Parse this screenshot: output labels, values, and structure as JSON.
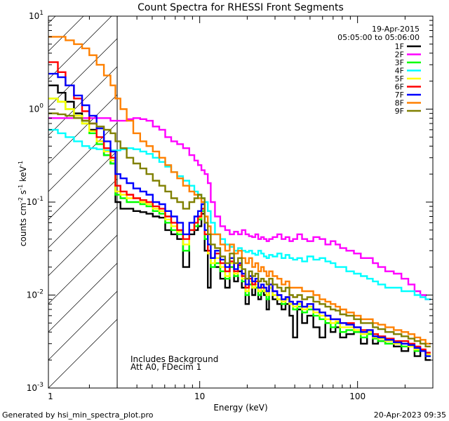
{
  "chart_data": {
    "type": "line",
    "title": "Count Spectra for RHESSI Front Segments",
    "xlabel": "Energy (keV)",
    "ylabel": "counts cm-2 s-1 keV-1",
    "ylabel_parts": {
      "base": "counts cm",
      "exp1": "-2",
      "mid1": " s",
      "exp2": "-1",
      "mid2": " keV",
      "exp3": "-1"
    },
    "xscale": "log",
    "yscale": "log",
    "xlim": [
      1.1,
      300
    ],
    "ylim": [
      0.001,
      10
    ],
    "x_ticks": [
      {
        "value": 1,
        "label": "1"
      },
      {
        "value": 10,
        "label": "10"
      },
      {
        "value": 100,
        "label": "100"
      }
    ],
    "y_ticks": [
      {
        "value": 0.001,
        "base": "10",
        "exp": "-3"
      },
      {
        "value": 0.01,
        "base": "10",
        "exp": "-2"
      },
      {
        "value": 0.1,
        "base": "10",
        "exp": "-1"
      },
      {
        "value": 1,
        "base": "10",
        "exp": "0"
      },
      {
        "value": 10,
        "base": "10",
        "exp": "1"
      }
    ],
    "date": "19-Apr-2015",
    "time_range": "05:05:00 to 05:06:00",
    "annotations": [
      "Includes Background",
      "Att A0, FDecim 1"
    ],
    "attenuator_cutoff_kev": 3,
    "legend_position": "top-right",
    "energies": [
      1.1,
      1.2,
      1.33,
      1.5,
      1.7,
      1.9,
      2.1,
      2.35,
      2.6,
      2.85,
      3.0,
      3.3,
      3.6,
      4.0,
      4.4,
      4.8,
      5.3,
      5.8,
      6.3,
      6.9,
      7.5,
      8.2,
      9.0,
      9.5,
      10.0,
      10.5,
      11.0,
      11.5,
      12.0,
      13.0,
      14.0,
      15.0,
      16.0,
      17.0,
      18.0,
      19.0,
      20.0,
      21.0,
      22.0,
      23.0,
      24.0,
      25.0,
      26.0,
      27.0,
      28.0,
      30.0,
      32.0,
      34.0,
      36.0,
      38.0,
      40.0,
      43.0,
      46.0,
      50.0,
      55.0,
      60.0,
      65.0,
      70.0,
      75.0,
      80.0,
      90.0,
      100.0,
      110.0,
      120.0,
      130.0,
      140.0,
      160.0,
      180.0,
      200.0,
      220.0,
      240.0,
      260.0,
      280.0
    ],
    "series": [
      {
        "name": "1F",
        "color": "#000000",
        "values": [
          1.8,
          1.8,
          1.5,
          1.2,
          0.9,
          0.75,
          0.6,
          0.45,
          0.32,
          0.26,
          0.1,
          0.085,
          0.085,
          0.08,
          0.078,
          0.075,
          0.07,
          0.068,
          0.05,
          0.045,
          0.04,
          0.02,
          0.045,
          0.05,
          0.055,
          0.075,
          0.03,
          0.012,
          0.025,
          0.02,
          0.015,
          0.012,
          0.02,
          0.014,
          0.018,
          0.012,
          0.008,
          0.013,
          0.01,
          0.012,
          0.009,
          0.011,
          0.01,
          0.007,
          0.012,
          0.009,
          0.008,
          0.007,
          0.008,
          0.006,
          0.0035,
          0.007,
          0.005,
          0.006,
          0.0045,
          0.0035,
          0.005,
          0.004,
          0.0045,
          0.0035,
          0.0038,
          0.004,
          0.003,
          0.004,
          0.003,
          0.0032,
          0.003,
          0.0028,
          0.0025,
          0.0028,
          0.0022,
          0.0025,
          0.002
        ]
      },
      {
        "name": "2F",
        "color": "#ff00ff",
        "values": [
          0.8,
          0.8,
          0.8,
          0.8,
          0.8,
          0.8,
          0.8,
          0.8,
          0.8,
          0.75,
          0.75,
          0.75,
          0.78,
          0.8,
          0.78,
          0.75,
          0.65,
          0.6,
          0.5,
          0.45,
          0.42,
          0.38,
          0.32,
          0.28,
          0.25,
          0.22,
          0.2,
          0.16,
          0.1,
          0.07,
          0.055,
          0.05,
          0.045,
          0.048,
          0.045,
          0.05,
          0.045,
          0.043,
          0.042,
          0.045,
          0.04,
          0.042,
          0.04,
          0.038,
          0.04,
          0.042,
          0.045,
          0.04,
          0.042,
          0.038,
          0.04,
          0.045,
          0.04,
          0.038,
          0.042,
          0.04,
          0.035,
          0.038,
          0.035,
          0.032,
          0.03,
          0.028,
          0.025,
          0.025,
          0.022,
          0.02,
          0.018,
          0.017,
          0.015,
          0.013,
          0.011,
          0.01,
          0.009
        ]
      },
      {
        "name": "3F",
        "color": "#00ff00",
        "values": [
          1.3,
          1.3,
          1.2,
          1.0,
          0.85,
          0.7,
          0.55,
          0.42,
          0.32,
          0.26,
          0.12,
          0.11,
          0.1,
          0.1,
          0.095,
          0.09,
          0.08,
          0.075,
          0.06,
          0.05,
          0.045,
          0.03,
          0.05,
          0.055,
          0.065,
          0.08,
          0.04,
          0.03,
          0.02,
          0.022,
          0.018,
          0.015,
          0.02,
          0.016,
          0.02,
          0.014,
          0.01,
          0.013,
          0.012,
          0.012,
          0.01,
          0.011,
          0.011,
          0.009,
          0.012,
          0.01,
          0.009,
          0.008,
          0.009,
          0.008,
          0.007,
          0.0075,
          0.0065,
          0.007,
          0.006,
          0.0055,
          0.005,
          0.0045,
          0.005,
          0.004,
          0.0042,
          0.004,
          0.0035,
          0.0038,
          0.0034,
          0.0032,
          0.003,
          0.003,
          0.0028,
          0.0028,
          0.0025,
          0.0025,
          0.0022
        ]
      },
      {
        "name": "4F",
        "color": "#00ffff",
        "values": [
          0.6,
          0.6,
          0.55,
          0.5,
          0.45,
          0.4,
          0.38,
          0.37,
          0.36,
          0.36,
          0.36,
          0.37,
          0.38,
          0.37,
          0.35,
          0.33,
          0.3,
          0.27,
          0.24,
          0.21,
          0.19,
          0.17,
          0.15,
          0.13,
          0.12,
          0.11,
          0.1,
          0.08,
          0.06,
          0.045,
          0.04,
          0.035,
          0.033,
          0.03,
          0.032,
          0.03,
          0.029,
          0.03,
          0.028,
          0.027,
          0.03,
          0.028,
          0.026,
          0.025,
          0.027,
          0.026,
          0.028,
          0.025,
          0.027,
          0.025,
          0.024,
          0.025,
          0.023,
          0.026,
          0.024,
          0.025,
          0.023,
          0.022,
          0.02,
          0.02,
          0.018,
          0.017,
          0.016,
          0.015,
          0.014,
          0.013,
          0.012,
          0.012,
          0.011,
          0.011,
          0.01,
          0.0095,
          0.009
        ]
      },
      {
        "name": "5F",
        "color": "#ffff00",
        "values": [
          1.3,
          1.3,
          1.2,
          1.0,
          0.85,
          0.7,
          0.58,
          0.45,
          0.35,
          0.28,
          0.13,
          0.12,
          0.11,
          0.11,
          0.1,
          0.095,
          0.085,
          0.08,
          0.065,
          0.055,
          0.048,
          0.035,
          0.05,
          0.06,
          0.068,
          0.085,
          0.045,
          0.028,
          0.022,
          0.025,
          0.02,
          0.016,
          0.022,
          0.017,
          0.02,
          0.015,
          0.011,
          0.014,
          0.012,
          0.013,
          0.011,
          0.012,
          0.011,
          0.01,
          0.012,
          0.01,
          0.009,
          0.0085,
          0.009,
          0.008,
          0.0075,
          0.008,
          0.007,
          0.0075,
          0.0065,
          0.006,
          0.0055,
          0.005,
          0.0052,
          0.0045,
          0.0045,
          0.0042,
          0.0038,
          0.004,
          0.0035,
          0.0034,
          0.0032,
          0.003,
          0.003,
          0.0028,
          0.0026,
          0.0025,
          0.0023
        ]
      },
      {
        "name": "6F",
        "color": "#ff0000",
        "values": [
          3.2,
          3.2,
          2.5,
          1.8,
          1.3,
          0.95,
          0.7,
          0.5,
          0.38,
          0.3,
          0.15,
          0.13,
          0.12,
          0.11,
          0.105,
          0.1,
          0.09,
          0.085,
          0.07,
          0.06,
          0.05,
          0.04,
          0.05,
          0.06,
          0.07,
          0.085,
          0.045,
          0.03,
          0.025,
          0.028,
          0.022,
          0.018,
          0.023,
          0.018,
          0.021,
          0.016,
          0.012,
          0.015,
          0.013,
          0.014,
          0.012,
          0.012,
          0.012,
          0.011,
          0.013,
          0.011,
          0.01,
          0.009,
          0.0095,
          0.0085,
          0.008,
          0.0085,
          0.0075,
          0.008,
          0.007,
          0.0065,
          0.006,
          0.0055,
          0.0055,
          0.005,
          0.005,
          0.0045,
          0.0042,
          0.0042,
          0.0038,
          0.0036,
          0.0034,
          0.0032,
          0.0032,
          0.003,
          0.0028,
          0.0026,
          0.0024
        ]
      },
      {
        "name": "7F",
        "color": "#0000ff",
        "values": [
          2.4,
          2.4,
          2.2,
          1.8,
          1.4,
          1.1,
          0.85,
          0.62,
          0.45,
          0.35,
          0.2,
          0.18,
          0.16,
          0.14,
          0.13,
          0.12,
          0.1,
          0.095,
          0.08,
          0.07,
          0.06,
          0.045,
          0.06,
          0.07,
          0.08,
          0.095,
          0.05,
          0.035,
          0.025,
          0.03,
          0.024,
          0.02,
          0.025,
          0.019,
          0.022,
          0.017,
          0.013,
          0.016,
          0.014,
          0.015,
          0.012,
          0.013,
          0.012,
          0.011,
          0.013,
          0.011,
          0.01,
          0.009,
          0.0095,
          0.0085,
          0.008,
          0.0085,
          0.0075,
          0.008,
          0.007,
          0.0065,
          0.006,
          0.0055,
          0.0055,
          0.005,
          0.0048,
          0.0045,
          0.004,
          0.0042,
          0.0036,
          0.0035,
          0.0033,
          0.0031,
          0.003,
          0.0029,
          0.0027,
          0.0025,
          0.0022
        ]
      },
      {
        "name": "8F",
        "color": "#ff8000",
        "values": [
          6.0,
          6.0,
          6.0,
          5.5,
          5.0,
          4.5,
          3.8,
          3.0,
          2.3,
          1.8,
          1.3,
          1.0,
          0.75,
          0.55,
          0.45,
          0.4,
          0.35,
          0.3,
          0.25,
          0.21,
          0.18,
          0.15,
          0.13,
          0.12,
          0.11,
          0.1,
          0.07,
          0.055,
          0.045,
          0.045,
          0.035,
          0.03,
          0.035,
          0.028,
          0.03,
          0.025,
          0.022,
          0.025,
          0.02,
          0.022,
          0.018,
          0.02,
          0.018,
          0.016,
          0.018,
          0.016,
          0.015,
          0.013,
          0.014,
          0.012,
          0.012,
          0.012,
          0.011,
          0.011,
          0.01,
          0.009,
          0.0085,
          0.008,
          0.0075,
          0.007,
          0.0065,
          0.006,
          0.0055,
          0.0055,
          0.005,
          0.0048,
          0.0045,
          0.0042,
          0.004,
          0.0038,
          0.0035,
          0.0033,
          0.003
        ]
      },
      {
        "name": "9F",
        "color": "#808000",
        "values": [
          0.9,
          0.9,
          0.88,
          0.85,
          0.8,
          0.75,
          0.7,
          0.65,
          0.6,
          0.55,
          0.45,
          0.38,
          0.3,
          0.26,
          0.23,
          0.2,
          0.17,
          0.15,
          0.13,
          0.11,
          0.1,
          0.085,
          0.1,
          0.11,
          0.12,
          0.11,
          0.06,
          0.045,
          0.035,
          0.032,
          0.026,
          0.022,
          0.028,
          0.022,
          0.025,
          0.019,
          0.015,
          0.018,
          0.016,
          0.017,
          0.014,
          0.015,
          0.014,
          0.013,
          0.015,
          0.013,
          0.012,
          0.011,
          0.012,
          0.01,
          0.0095,
          0.01,
          0.009,
          0.0095,
          0.0085,
          0.008,
          0.0075,
          0.007,
          0.0068,
          0.0062,
          0.006,
          0.0055,
          0.005,
          0.005,
          0.0045,
          0.0043,
          0.004,
          0.0038,
          0.0036,
          0.0034,
          0.0032,
          0.003,
          0.0028
        ]
      }
    ]
  },
  "footer": {
    "generated_by": "Generated by hsi_min_spectra_plot.pro",
    "timestamp": "20-Apr-2023 09:35"
  }
}
